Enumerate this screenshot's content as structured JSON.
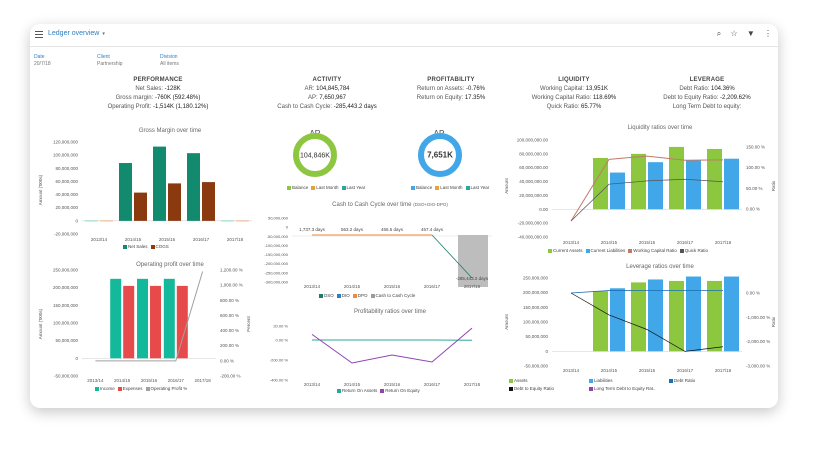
{
  "header": {
    "title": "Ledger overview",
    "caret": "▾",
    "icons": [
      "search-icon",
      "star-icon",
      "filter-icon",
      "more-icon"
    ],
    "glyphs": {
      "search": "⌕",
      "star": "☆",
      "filter": "▼",
      "more": "⋮"
    }
  },
  "filters": [
    {
      "label": "Date",
      "value": "20/7/18"
    },
    {
      "label": "Client",
      "value": "Partnership"
    },
    {
      "label": "Division",
      "value": "All items"
    }
  ],
  "kpis": {
    "performance": {
      "title": "PERFORMANCE",
      "rows": [
        [
          "Net Sales:",
          "-128K"
        ],
        [
          "Gross margin:",
          "-760K (592.48%)"
        ],
        [
          "Operating Profit:",
          "-1,514K (1,180.12%)"
        ]
      ]
    },
    "activity": {
      "title": "ACTIVITY",
      "rows": [
        [
          "AR:",
          "104,845,784"
        ],
        [
          "AP:",
          "7,650,967"
        ],
        [
          "Cash to Cash Cycle:",
          "-285,443.2 days"
        ]
      ]
    },
    "profitability": {
      "title": "PROFITABILITY",
      "rows": [
        [
          "Return on Assets:",
          "-0.76%"
        ],
        [
          "Return on Equity:",
          "17.35%"
        ]
      ]
    },
    "liquidity": {
      "title": "LIQUIDITY",
      "rows": [
        [
          "Working Capital:",
          "13,951K"
        ],
        [
          "Working Capital Ratio:",
          "118.69%"
        ],
        [
          "Quick Ratio:",
          "65.77%"
        ]
      ]
    },
    "leverage": {
      "title": "LEVERAGE",
      "rows": [
        [
          "Debt Ratio:",
          "104.36%"
        ],
        [
          "Debt to Equity Ratio:",
          "-2,209.62%"
        ],
        [
          "Long Term Debt to equity:",
          ""
        ]
      ]
    }
  },
  "chart_data": [
    {
      "id": "gross",
      "type": "bar",
      "title": "Gross Margin over time",
      "ylabel": "Amount ('000s)",
      "categories": [
        "2013/14",
        "2014/15",
        "2015/16",
        "2016/17",
        "2017/18"
      ],
      "ylim": [
        -20000000,
        120000000
      ],
      "yticks": [
        "120,000,000",
        "100,000,000",
        "80,000,000",
        "60,000,000",
        "40,000,000",
        "20,000,000",
        "0",
        "-20,000,000"
      ],
      "series": [
        {
          "name": "Net Sales",
          "color": "#118a6e",
          "values": [
            0,
            88000000,
            113000000,
            103000000,
            0
          ]
        },
        {
          "name": "COGS",
          "color": "#8b3a10",
          "values": [
            0,
            43000000,
            57000000,
            59000000,
            0
          ]
        }
      ]
    },
    {
      "id": "opprofit",
      "type": "bar",
      "title": "Operating profit over time",
      "ylabel": "Amount ('000s)",
      "y2label": "Percent",
      "categories": [
        "2013/14",
        "2014/15",
        "2015/16",
        "2016/17",
        "2017/18"
      ],
      "ylim": [
        -50000000,
        250000000
      ],
      "yticks": [
        "250,000,000",
        "200,000,000",
        "150,000,000",
        "100,000,000",
        "50,000,000",
        "0",
        "-50,000,000"
      ],
      "y2ticks": [
        "1,200.00 %",
        "1,000.00 %",
        "800.00 %",
        "600.00 %",
        "400.00 %",
        "200.00 %",
        "0.00 %",
        "-200.00 %"
      ],
      "series": [
        {
          "name": "Income",
          "color": "#14b89a",
          "values": [
            0,
            225000000,
            225000000,
            225000000,
            0
          ]
        },
        {
          "name": "Expenses",
          "color": "#e64a4a",
          "values": [
            0,
            205000000,
            205000000,
            205000000,
            0
          ]
        },
        {
          "name": "Operating Profit %",
          "color": "#a0a0a0",
          "values": [
            0,
            0,
            0,
            0,
            1180
          ]
        }
      ]
    },
    {
      "id": "ar",
      "type": "pie",
      "title": "AR",
      "center": "104,846K",
      "color": "#8dc63f",
      "legend": [
        "Balance",
        "Last Month",
        "Last Year"
      ],
      "legend_colors": [
        "#8dc63f",
        "#e8a23a",
        "#2aa7a0"
      ]
    },
    {
      "id": "ap",
      "type": "pie",
      "title": "AP",
      "center": "7,651K",
      "color": "#41a7e8",
      "legend": [
        "Balance",
        "Last Month",
        "Last Year"
      ],
      "legend_colors": [
        "#41a7e8",
        "#e8a23a",
        "#2aa7a0"
      ]
    },
    {
      "id": "ccc",
      "type": "bar",
      "title": "Cash to Cash Cycle over time",
      "subtitle": "(DSO+DIO-DPO)",
      "categories": [
        "2013/14",
        "2014/15",
        "2015/16",
        "2016/17",
        "2017/18"
      ],
      "yticks": [
        "50,000,000",
        "0",
        "-50,000,000",
        "-100,000,000",
        "-150,000,000",
        "-200,000,000",
        "-250,000,000",
        "-300,000,000"
      ],
      "point_labels": [
        "1,737.3 days",
        "563.2 days",
        "466.5 days",
        "467.4 days",
        "-285,443.2 days"
      ],
      "series": [
        {
          "name": "DSO",
          "color": "#1f7a6c"
        },
        {
          "name": "DIO",
          "color": "#2d7fc0"
        },
        {
          "name": "DPO",
          "color": "#f08a3c"
        },
        {
          "name": "Cash to Cash Cycle",
          "color": "#9b9b9b"
        }
      ]
    },
    {
      "id": "profratio",
      "type": "line",
      "title": "Profitability ratios over time",
      "categories": [
        "2013/14",
        "2014/15",
        "2015/16",
        "2016/17",
        "2017/18"
      ],
      "yticks": [
        "20.00 %",
        "0.00 %",
        "-200.00 %",
        "-400.00 %"
      ],
      "series": [
        {
          "name": "Return On Assets",
          "color": "#2aa79b",
          "values": [
            0,
            0,
            0,
            0,
            -1
          ]
        },
        {
          "name": "Return On Equity",
          "color": "#8e44ad",
          "values": [
            8,
            -115,
            -75,
            -110,
            17
          ]
        }
      ]
    },
    {
      "id": "liq",
      "type": "bar",
      "title": "Liquidity ratios over time",
      "ylabel": "Amount",
      "y2label": "Ratio",
      "categories": [
        "2013/14",
        "2014/15",
        "2015/16",
        "2016/17",
        "2017/18"
      ],
      "ylim": [
        -40000000,
        100000000
      ],
      "yticks": [
        "100,000,000.00",
        "80,000,000.00",
        "60,000,000.00",
        "40,000,000.00",
        "20,000,000.00",
        "0.00",
        "-20,000,000.00",
        "-40,000,000.00"
      ],
      "y2ticks": [
        "150.00 %",
        "100.00 %",
        "50.00 %",
        "0.00 %"
      ],
      "series": [
        {
          "name": "Current Assets",
          "color": "#8dc63f",
          "values": [
            0,
            74000000,
            80000000,
            90000000,
            87000000
          ]
        },
        {
          "name": "Current Liabilities",
          "color": "#41a7e8",
          "values": [
            0,
            53000000,
            68000000,
            71000000,
            73000000
          ]
        },
        {
          "name": "Working Capital Ratio",
          "color": "#c07a6a",
          "values": [
            0,
            120,
            128,
            118,
            119
          ]
        },
        {
          "name": "Quick Ratio",
          "color": "#555555",
          "values": [
            0,
            60,
            68,
            72,
            66
          ]
        }
      ]
    },
    {
      "id": "lev",
      "type": "bar",
      "title": "Leverage ratios over time",
      "ylabel": "Amount",
      "y2label": "Ratio",
      "categories": [
        "2013/14",
        "2014/15",
        "2015/16",
        "2016/17",
        "2017/18"
      ],
      "ylim": [
        -50000000,
        250000000
      ],
      "yticks": [
        "250,000,000",
        "200,000,000",
        "150,000,000",
        "100,000,000",
        "50,000,000",
        "0",
        "-50,000,000"
      ],
      "y2ticks": [
        "0.00 %",
        "-1,000.00 %",
        "-2,000.00 %",
        "-3,000.00 %"
      ],
      "series": [
        {
          "name": "Assets",
          "color": "#8dc63f",
          "values": [
            0,
            205000000,
            235000000,
            240000000,
            240000000
          ]
        },
        {
          "name": "Liabilities",
          "color": "#41a7e8",
          "values": [
            0,
            215000000,
            245000000,
            255000000,
            255000000
          ]
        },
        {
          "name": "Debt Ratio",
          "color": "#1a6fb5",
          "values": [
            0,
            100,
            104,
            104,
            104
          ]
        },
        {
          "name": "Debt to Equity Ratio",
          "color": "#111111",
          "values": [
            0,
            -900,
            -1500,
            -2400,
            -2210
          ]
        },
        {
          "name": "Long Term Debt to Equity Rat..",
          "color": "#8e44ad",
          "values": [
            0,
            0,
            0,
            0,
            0
          ]
        }
      ]
    }
  ]
}
